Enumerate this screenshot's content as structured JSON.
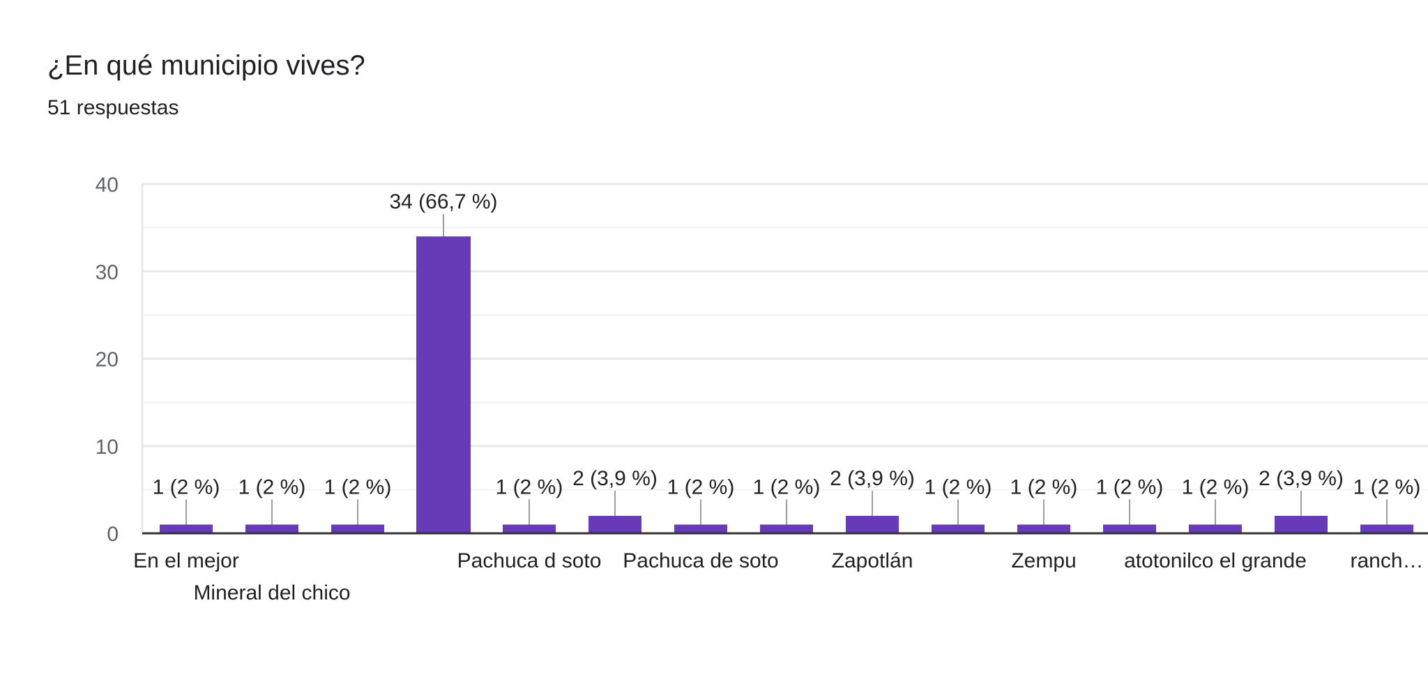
{
  "header": {
    "title": "¿En qué municipio vives?",
    "subtitle": "51 respuestas"
  },
  "colors": {
    "bar": "#673ab7",
    "grid": "#e8e8e8",
    "axis": "#333333",
    "leader": "#9e9e9e"
  },
  "chart_data": {
    "type": "bar",
    "title": "¿En qué municipio vives?",
    "subtitle": "51 respuestas",
    "ylim": [
      0,
      40
    ],
    "yticks": [
      0,
      10,
      20,
      30,
      40
    ],
    "grid": true,
    "categories": [
      "En el mejor",
      "Mineral del chico",
      "",
      "",
      "Pachuca d soto",
      "",
      "Pachuca de soto",
      "",
      "Zapotlán",
      "",
      "Zempu",
      "",
      "atotonilco el grande",
      "",
      "ranch…"
    ],
    "values": [
      1,
      1,
      1,
      34,
      1,
      2,
      1,
      1,
      2,
      1,
      1,
      1,
      1,
      2,
      1
    ],
    "data_labels": [
      "1 (2 %)",
      "1 (2 %)",
      "1 (2 %)",
      "34 (66,7 %)",
      "1 (2 %)",
      "2 (3,9 %)",
      "1 (2 %)",
      "1 (2 %)",
      "2 (3,9 %)",
      "1 (2 %)",
      "1 (2 %)",
      "1 (2 %)",
      "1 (2 %)",
      "2 (3,9 %)",
      "1 (2 %)"
    ]
  }
}
